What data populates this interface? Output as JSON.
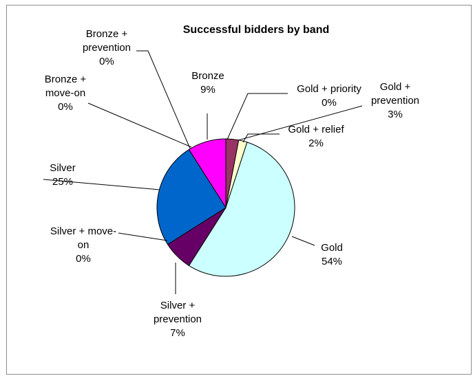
{
  "chart_data": {
    "type": "pie",
    "title": "Successful bidders by band",
    "slices": [
      {
        "label_lines": [
          "Gold + priority",
          "0%"
        ],
        "value": 0,
        "color": "#1f3864"
      },
      {
        "label_lines": [
          "Gold +",
          "prevention",
          "3%"
        ],
        "value": 3,
        "color": "#993366"
      },
      {
        "label_lines": [
          "Gold + relief",
          "2%"
        ],
        "value": 2,
        "color": "#ffffcc"
      },
      {
        "label_lines": [
          "Gold",
          "54%"
        ],
        "value": 54,
        "color": "#ccffff"
      },
      {
        "label_lines": [
          "Silver +",
          "prevention",
          "7%"
        ],
        "value": 7,
        "color": "#660066"
      },
      {
        "label_lines": [
          "Silver + move-",
          "on",
          "0%"
        ],
        "value": 0,
        "color": "#ff8080"
      },
      {
        "label_lines": [
          "Silver",
          "25%"
        ],
        "value": 25,
        "color": "#0066cc"
      },
      {
        "label_lines": [
          "Bronze +",
          "move-on",
          "0%"
        ],
        "value": 0,
        "color": "#ccccff"
      },
      {
        "label_lines": [
          "Bronze +",
          "prevention",
          "0%"
        ],
        "value": 0,
        "color": "#000080"
      },
      {
        "label_lines": [
          "Bronze",
          "9%"
        ],
        "value": 9,
        "color": "#ff00ff"
      }
    ]
  }
}
